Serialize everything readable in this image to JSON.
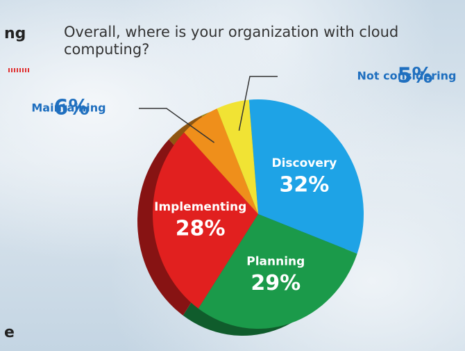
{
  "chart_data": {
    "type": "pie",
    "title": "Overall, where is your organization with cloud computing?",
    "categories": [
      "Discovery",
      "Planning",
      "Implementing",
      "Maintaining",
      "Not considering"
    ],
    "values": [
      32,
      29,
      28,
      6,
      5
    ],
    "value_labels": [
      "32%",
      "29%",
      "28%",
      "6%",
      "5%"
    ],
    "colors": [
      "#1ea3e6",
      "#1b9a4a",
      "#e1201f",
      "#ef8f1b",
      "#f1e334"
    ],
    "cropped_text": [
      "ng",
      "e"
    ]
  }
}
